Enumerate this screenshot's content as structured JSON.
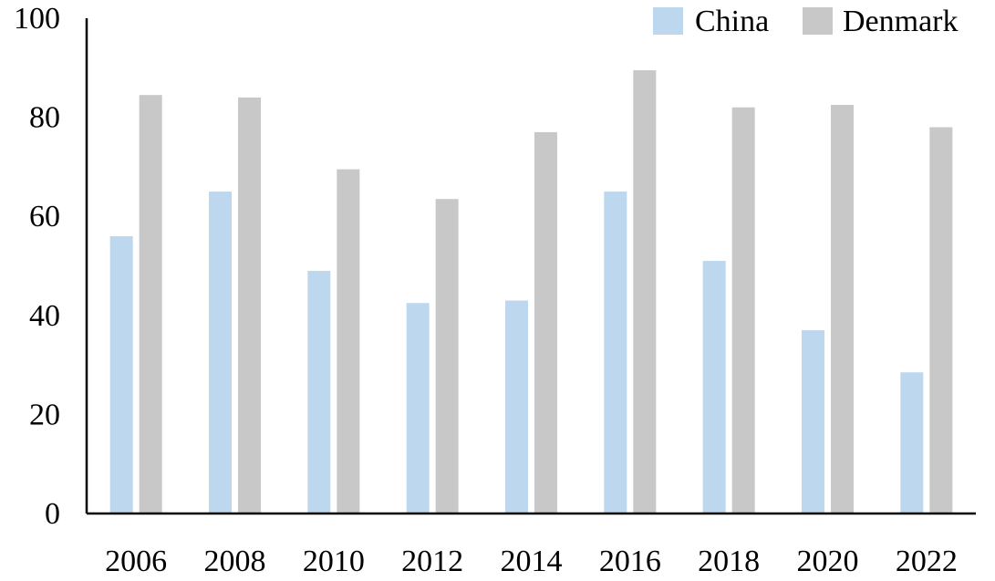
{
  "chart_data": {
    "type": "bar",
    "categories": [
      "2006",
      "2008",
      "2010",
      "2012",
      "2014",
      "2016",
      "2018",
      "2020",
      "2022"
    ],
    "series": [
      {
        "name": "China",
        "color": "#bdd7ee",
        "values": [
          56,
          65,
          49,
          42.5,
          43,
          65,
          51,
          37,
          28.5
        ]
      },
      {
        "name": "Denmark",
        "color": "#c8c8c8",
        "values": [
          84.5,
          84,
          69.5,
          63.5,
          77,
          89.5,
          82,
          82.5,
          78
        ]
      }
    ],
    "ylim": [
      0,
      100
    ],
    "yticks": [
      "0",
      "20",
      "40",
      "60",
      "80",
      "100"
    ],
    "title": "",
    "xlabel": "",
    "ylabel": "",
    "grid": false,
    "legend_position": "top-right"
  }
}
